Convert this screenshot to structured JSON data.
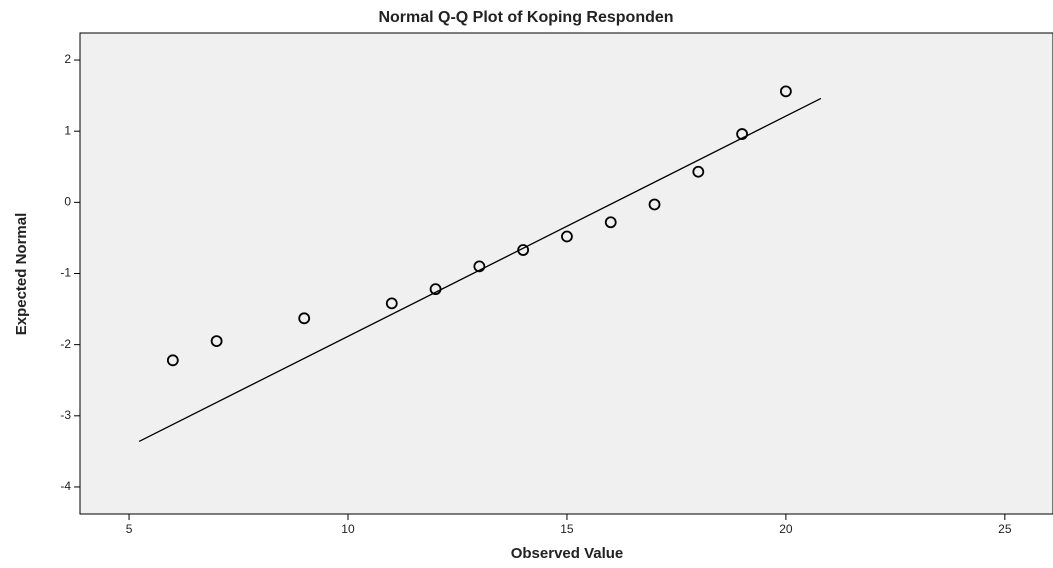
{
  "chart_data": {
    "type": "scatter",
    "title": "Normal Q-Q Plot of Koping Responden",
    "x_label": "Observed Value",
    "y_label": "Expected Normal",
    "x": [
      6,
      7,
      9,
      11,
      12,
      13,
      14,
      15,
      16,
      17,
      18,
      19,
      20
    ],
    "values": [
      -2.22,
      -1.95,
      -1.63,
      -1.42,
      -1.22,
      -0.9,
      -0.67,
      -0.48,
      -0.28,
      -0.03,
      0.43,
      0.96,
      1.56
    ],
    "color": "#000000",
    "reference_line": {
      "x": [
        5.23,
        20.8
      ],
      "y": [
        -3.36,
        1.46
      ]
    },
    "xlim": [
      3.88,
      26.1
    ],
    "ylim": [
      -4.38,
      2.38
    ],
    "xticks": [
      5,
      10,
      15,
      20,
      25
    ],
    "yticks": [
      2,
      1,
      0,
      -1,
      -2,
      -3,
      -4
    ],
    "grid": false
  }
}
